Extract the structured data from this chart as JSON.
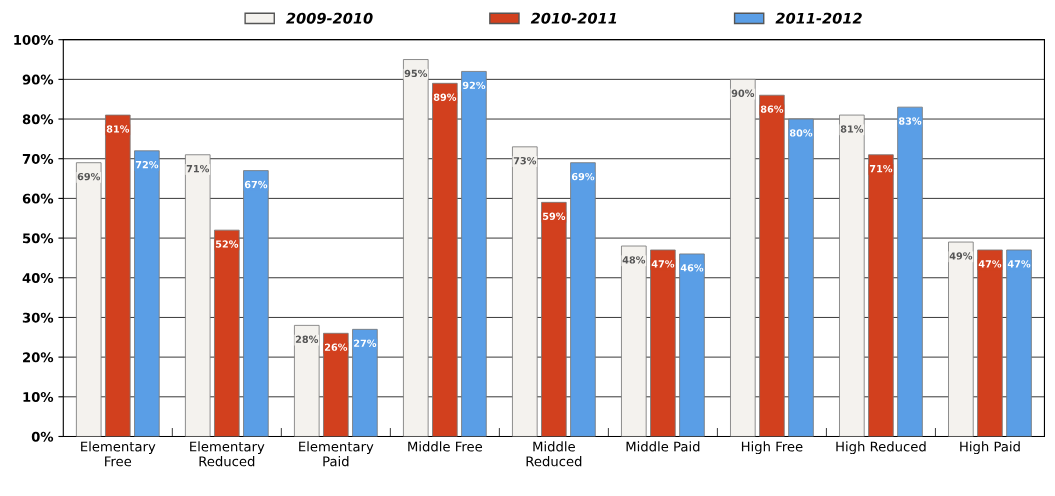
{
  "chart_data": {
    "type": "bar",
    "categories": [
      "Elementary\nFree",
      "Elementary\nReduced",
      "Elementary\nPaid",
      "Middle Free",
      "Middle\nReduced",
      "Middle Paid",
      "High Free",
      "High Reduced",
      "High Paid"
    ],
    "series": [
      {
        "name": "2009-2010",
        "color": "#f4f2ee",
        "values": [
          69,
          71,
          28,
          95,
          73,
          48,
          90,
          81,
          49
        ],
        "value_labels": [
          "69%",
          "71%",
          "28%",
          "95%",
          "73%",
          "48%",
          "90%",
          "81%",
          "49%"
        ]
      },
      {
        "name": "2010-2011",
        "color": "#d2401e",
        "values": [
          81,
          52,
          26,
          89,
          59,
          47,
          86,
          71,
          47
        ],
        "value_labels": [
          "81%",
          "52%",
          "26%",
          "89%",
          "59%",
          "47%",
          "86%",
          "71%",
          "47%"
        ]
      },
      {
        "name": "2011-2012",
        "color": "#5a9ee6",
        "values": [
          72,
          67,
          27,
          92,
          69,
          46,
          80,
          83,
          47
        ],
        "value_labels": [
          "72%",
          "67%",
          "27%",
          "92%",
          "69%",
          "46%",
          "80%",
          "83%",
          "47%"
        ]
      }
    ],
    "ylim": [
      0,
      100
    ],
    "yticks": [
      {
        "value": 0,
        "label": "0%"
      },
      {
        "value": 10,
        "label": "10%"
      },
      {
        "value": 20,
        "label": "20%"
      },
      {
        "value": 30,
        "label": "30%"
      },
      {
        "value": 40,
        "label": "40%"
      },
      {
        "value": 50,
        "label": "50%"
      },
      {
        "value": 60,
        "label": "60%"
      },
      {
        "value": 70,
        "label": "70%"
      },
      {
        "value": 80,
        "label": "80%"
      },
      {
        "value": 90,
        "label": "90%"
      },
      {
        "value": 100,
        "label": "100%"
      }
    ],
    "grid": "y",
    "legend": "top"
  }
}
